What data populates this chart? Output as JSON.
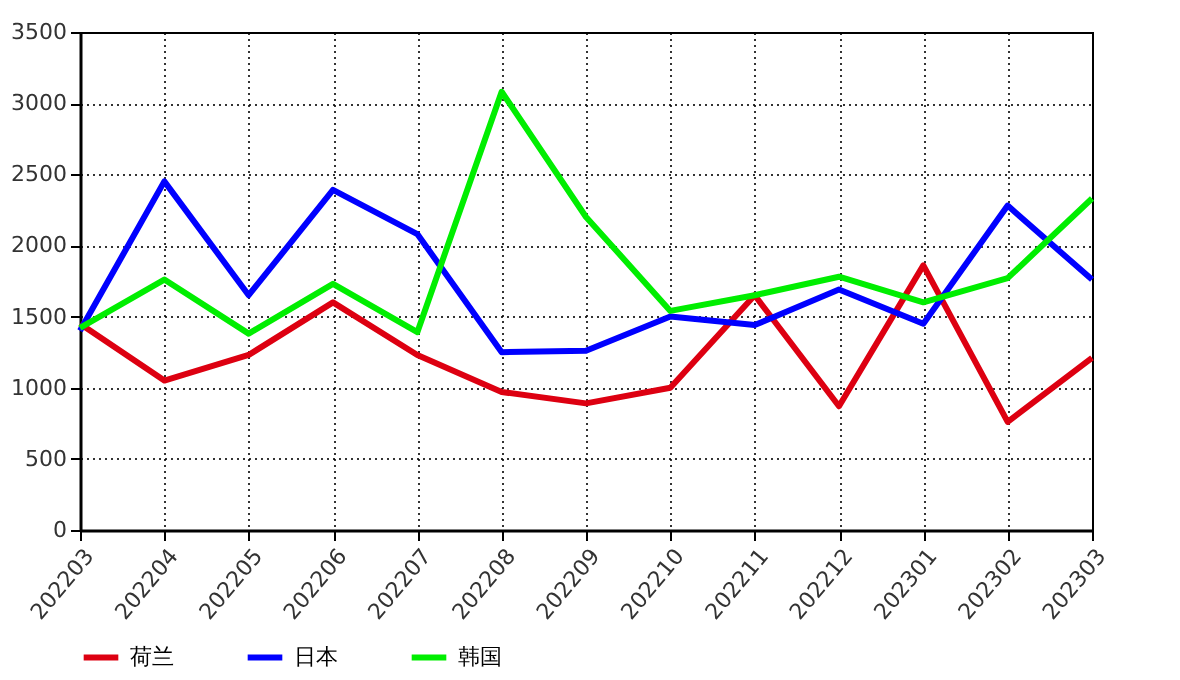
{
  "chart_data": {
    "type": "line",
    "categories": [
      "202203",
      "202204",
      "202205",
      "202206",
      "202207",
      "202208",
      "202209",
      "202210",
      "202211",
      "202212",
      "202301",
      "202302",
      "202303"
    ],
    "series": [
      {
        "name": "荷兰",
        "color": "#dd0011",
        "values": [
          1450,
          1050,
          1230,
          1600,
          1230,
          970,
          890,
          1000,
          1650,
          870,
          1860,
          760,
          1210
        ]
      },
      {
        "name": "日本",
        "color": "#0000ff",
        "values": [
          1400,
          2450,
          1650,
          2390,
          2080,
          1250,
          1260,
          1500,
          1440,
          1690,
          1450,
          2280,
          1760
        ]
      },
      {
        "name": "韩国",
        "color": "#00ee00",
        "values": [
          1420,
          1760,
          1380,
          1730,
          1390,
          3080,
          2200,
          1540,
          1650,
          1780,
          1600,
          1770,
          2330
        ]
      }
    ],
    "ylim": [
      0,
      3500
    ],
    "yticks": [
      0,
      500,
      1000,
      1500,
      2000,
      2500,
      3000,
      3500
    ],
    "grid": true,
    "legend": "bottom left",
    "marker": "none",
    "line_style": "solid"
  }
}
